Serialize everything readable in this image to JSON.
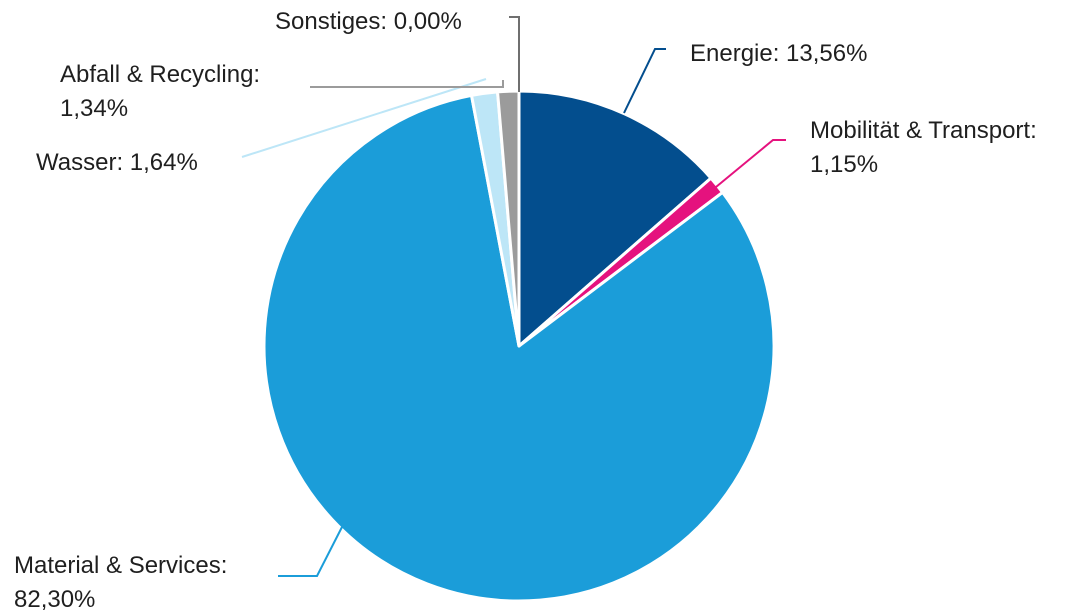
{
  "chart_data": {
    "type": "pie",
    "title": "",
    "slices": [
      {
        "name": "Energie",
        "value": 13.56,
        "label": "Energie: 13,56%",
        "label_lines": [
          "Energie: 13,56%"
        ],
        "color": "#034E8E"
      },
      {
        "name": "Mobilität & Transport",
        "value": 1.15,
        "label": "Mobilität & Transport: 1,15%",
        "label_lines": [
          "Mobilität & Transport:",
          "1,15%"
        ],
        "color": "#E5127E"
      },
      {
        "name": "Material & Services",
        "value": 82.3,
        "label": "Material & Services: 82,30%",
        "label_lines": [
          "Material & Services:",
          "82,30%"
        ],
        "color": "#1B9DD9"
      },
      {
        "name": "Wasser",
        "value": 1.64,
        "label": "Wasser: 1,64%",
        "label_lines": [
          "Wasser: 1,64%"
        ],
        "color": "#BDE6F7"
      },
      {
        "name": "Abfall & Recycling",
        "value": 1.34,
        "label": "Abfall & Recycling: 1,34%",
        "label_lines": [
          "Abfall & Recycling:",
          "1,34%"
        ],
        "color": "#9B9B9B"
      },
      {
        "name": "Sonstiges",
        "value": 0.0,
        "label": "Sonstiges: 0,00%",
        "label_lines": [
          "Sonstiges: 0,00%"
        ],
        "color": "#6F6F6F"
      }
    ],
    "start_angle": "top",
    "direction": "clockwise",
    "legend": "none"
  }
}
